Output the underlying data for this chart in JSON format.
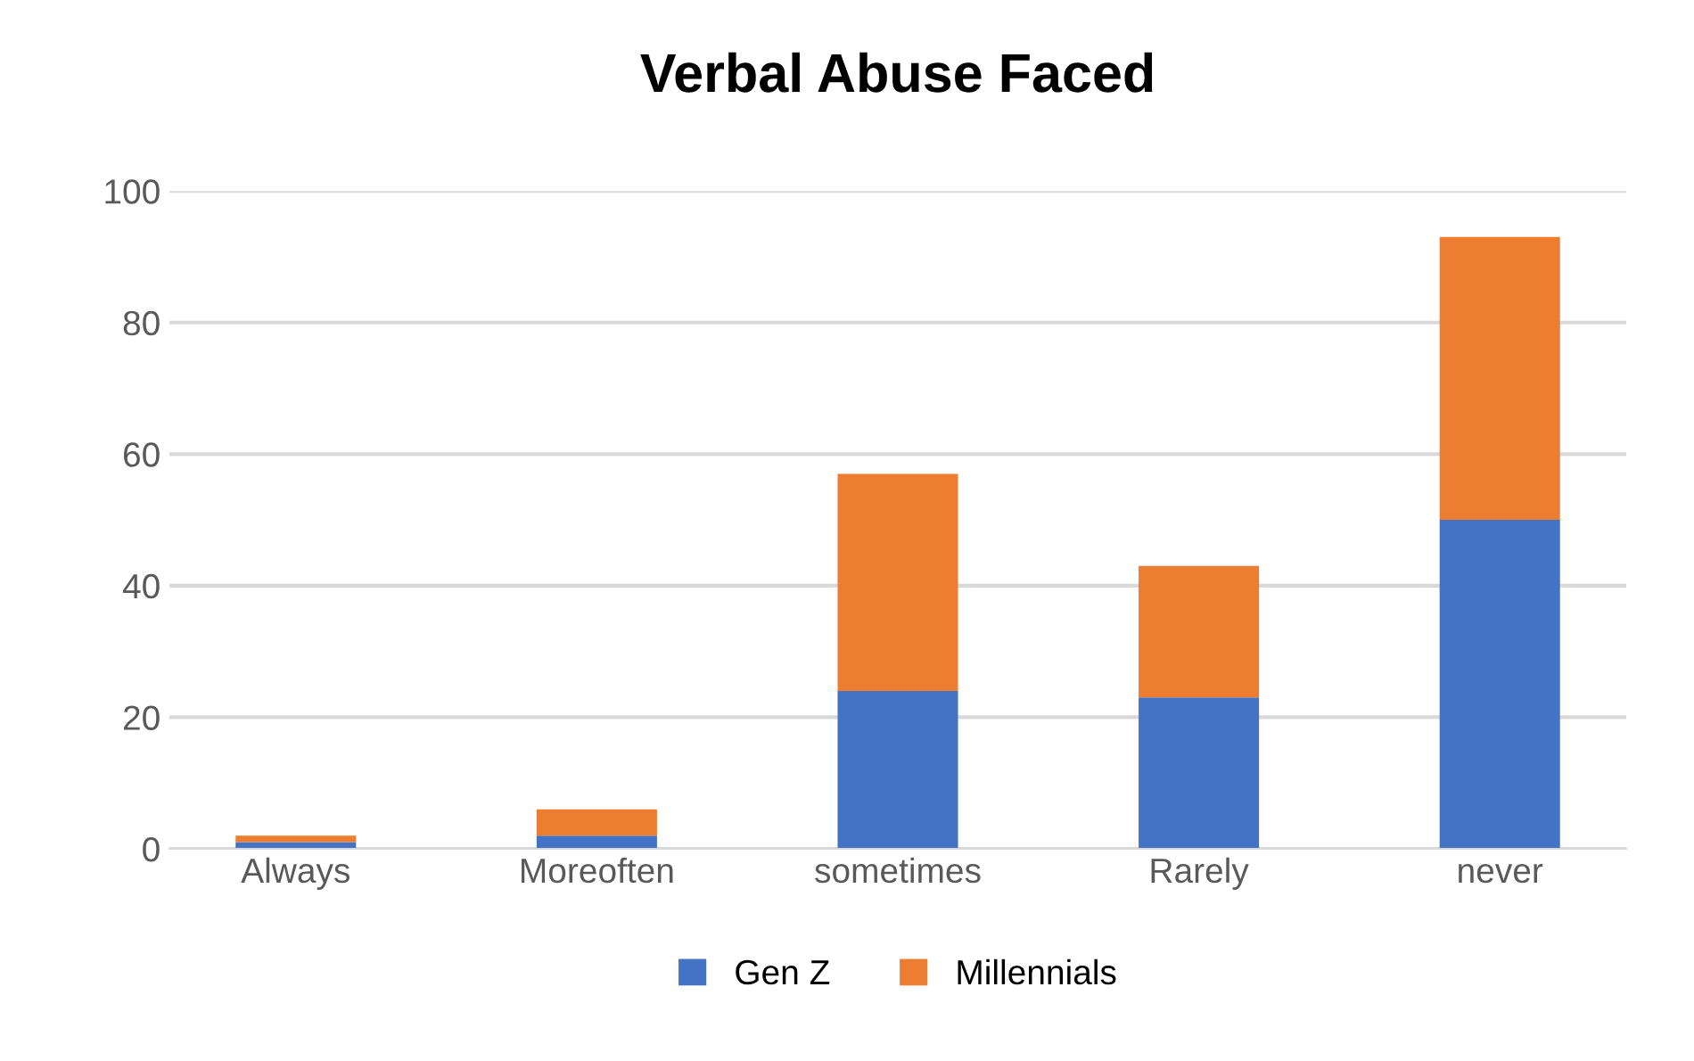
{
  "chart_data": {
    "type": "bar",
    "title": "Verbal Abuse Faced",
    "categories": [
      "Always",
      "Moreoften",
      "sometimes",
      "Rarely",
      "never"
    ],
    "stacked": true,
    "series": [
      {
        "name": "Gen Z",
        "color": "#4472c4",
        "values": [
          1,
          2,
          24,
          23,
          50
        ]
      },
      {
        "name": "Millennials",
        "color": "#ed7d31",
        "values": [
          1,
          4,
          33,
          20,
          43
        ]
      }
    ],
    "ylim": [
      0,
      100
    ],
    "yticks": [
      0,
      20,
      40,
      60,
      80,
      100
    ],
    "grid": "y",
    "legend": "bottom"
  }
}
